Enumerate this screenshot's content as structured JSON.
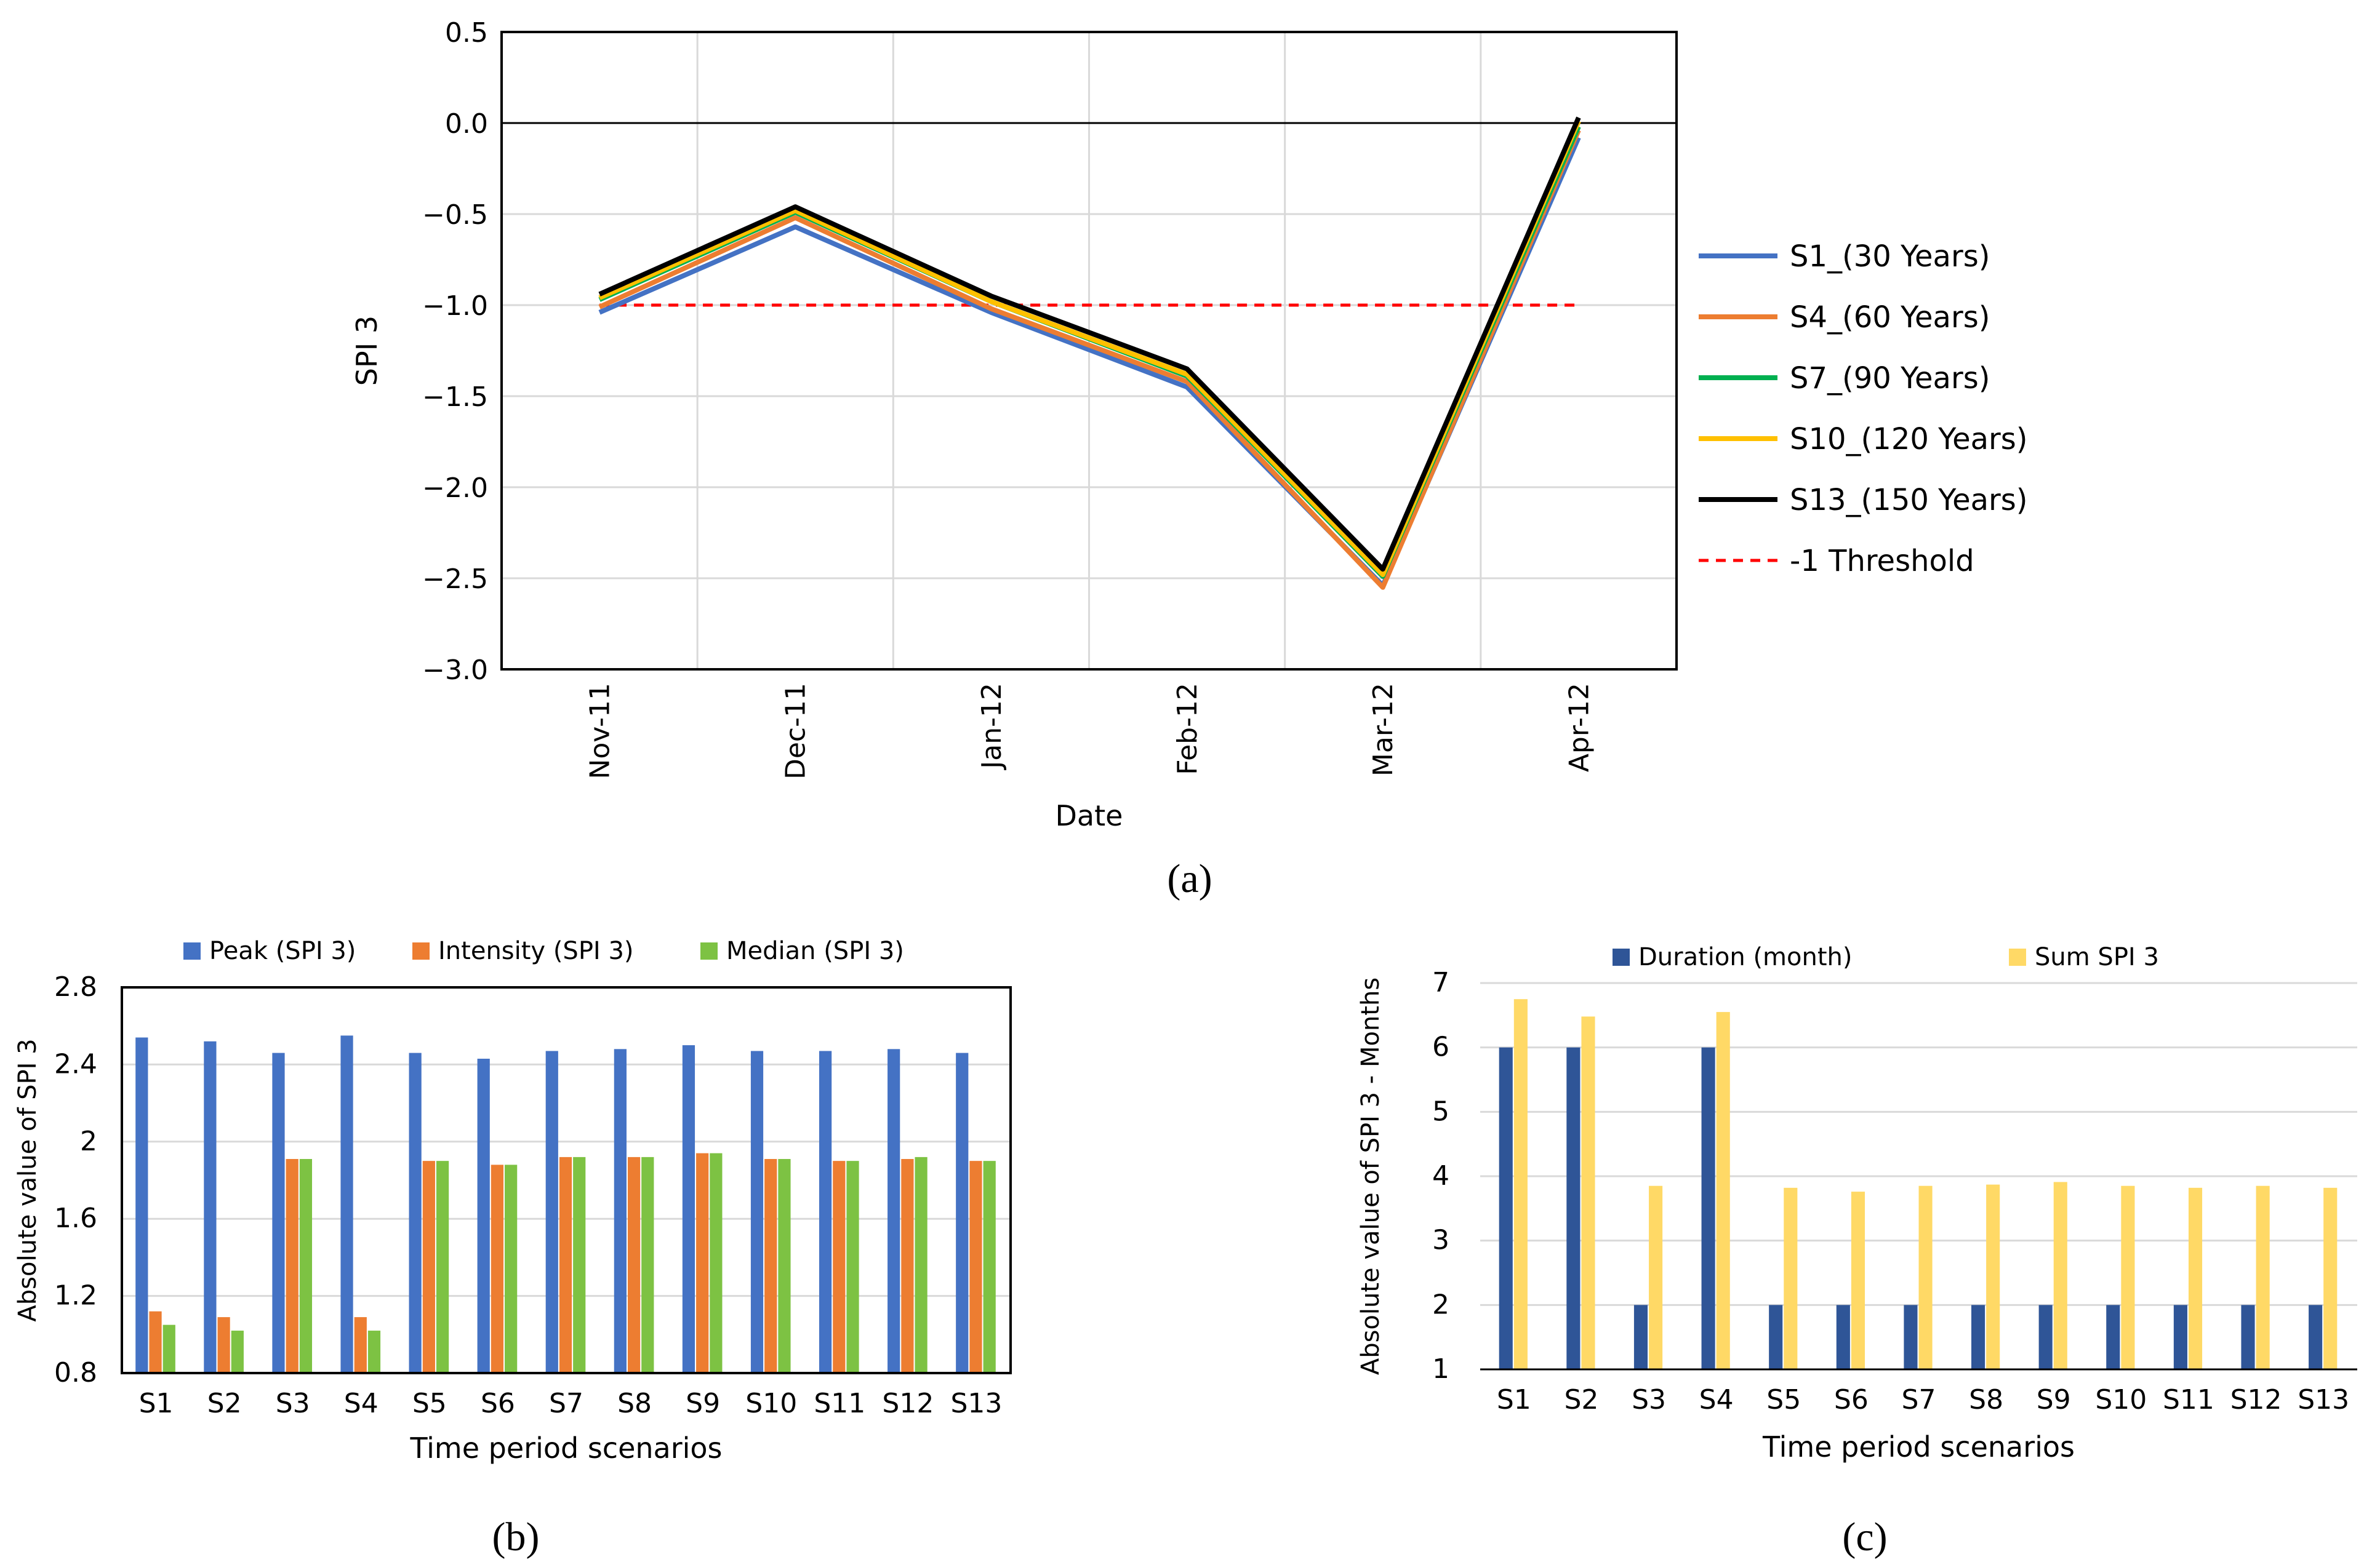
{
  "panel_labels": {
    "a": "(a)",
    "b": "(b)",
    "c": "(c)"
  },
  "chart_data": [
    {
      "id": "a",
      "type": "line",
      "xlabel": "Date",
      "ylabel": "SPI 3",
      "categories": [
        "Nov-11",
        "Dec-11",
        "Jan-12",
        "Feb-12",
        "Mar-12",
        "Apr-12"
      ],
      "ylim": [
        -3.0,
        0.5
      ],
      "yticks": [
        0.5,
        0.0,
        -0.5,
        -1.0,
        -1.5,
        -2.0,
        -2.5,
        -3.0
      ],
      "ytick_labels": [
        "0.5",
        "0.0",
        "−0.5",
        "−1.0",
        "−1.5",
        "−2.0",
        "−2.5",
        "−3.0"
      ],
      "grid": true,
      "legend_position": "right",
      "series": [
        {
          "name": "S1_(30 Years)",
          "color": "#4472C4",
          "values": [
            -1.04,
            -0.57,
            -1.04,
            -1.45,
            -2.54,
            -0.08
          ]
        },
        {
          "name": "S4_(60 Years)",
          "color": "#ED7D31",
          "values": [
            -1.01,
            -0.52,
            -1.02,
            -1.42,
            -2.55,
            -0.04
          ]
        },
        {
          "name": "S7_(90 Years)",
          "color": "#00B050",
          "values": [
            -0.97,
            -0.49,
            -0.98,
            -1.39,
            -2.49,
            -0.02
          ]
        },
        {
          "name": "S10_(120 Years)",
          "color": "#FFC000",
          "values": [
            -0.96,
            -0.48,
            -0.98,
            -1.38,
            -2.48,
            0.01
          ]
        },
        {
          "name": "S13_(150 Years)",
          "color": "#000000",
          "values": [
            -0.94,
            -0.46,
            -0.95,
            -1.35,
            -2.45,
            0.03
          ]
        }
      ],
      "threshold": {
        "name": "-1 Threshold",
        "value": -1.0,
        "color": "#FF0000",
        "style": "dashed"
      }
    },
    {
      "id": "b",
      "type": "bar",
      "xlabel": "Time period scenarios",
      "ylabel": "Absolute value of SPI 3",
      "categories": [
        "S1",
        "S2",
        "S3",
        "S4",
        "S5",
        "S6",
        "S7",
        "S8",
        "S9",
        "S10",
        "S11",
        "S12",
        "S13"
      ],
      "ylim": [
        0.8,
        2.8
      ],
      "yticks": [
        0.8,
        1.2,
        1.6,
        2.0,
        2.4,
        2.8
      ],
      "ytick_labels": [
        "0.8",
        "1.2",
        "1.6",
        "2",
        "2.4",
        "2.8"
      ],
      "grid": true,
      "legend_position": "top",
      "series": [
        {
          "name": "Peak (SPI 3)",
          "color": "#4472C4",
          "values": [
            2.54,
            2.52,
            2.46,
            2.55,
            2.46,
            2.43,
            2.47,
            2.48,
            2.5,
            2.47,
            2.47,
            2.48,
            2.46
          ]
        },
        {
          "name": "Intensity (SPI 3)",
          "color": "#ED7D31",
          "values": [
            1.12,
            1.09,
            1.91,
            1.09,
            1.9,
            1.88,
            1.92,
            1.92,
            1.94,
            1.91,
            1.9,
            1.91,
            1.9
          ]
        },
        {
          "name": "Median (SPI 3)",
          "color": "#7DC243",
          "values": [
            1.05,
            1.02,
            1.91,
            1.02,
            1.9,
            1.88,
            1.92,
            1.92,
            1.94,
            1.91,
            1.9,
            1.92,
            1.9
          ]
        }
      ]
    },
    {
      "id": "c",
      "type": "bar",
      "xlabel": "Time period scenarios",
      "ylabel": "Absolute value of SPI 3 - Months",
      "categories": [
        "S1",
        "S2",
        "S3",
        "S4",
        "S5",
        "S6",
        "S7",
        "S8",
        "S9",
        "S10",
        "S11",
        "S12",
        "S13"
      ],
      "ylim": [
        1,
        7
      ],
      "yticks": [
        1,
        2,
        3,
        4,
        5,
        6,
        7
      ],
      "ytick_labels": [
        "1",
        "2",
        "3",
        "4",
        "5",
        "6",
        "7"
      ],
      "grid": true,
      "legend_position": "top",
      "series": [
        {
          "name": "Duration (month)",
          "color": "#2F5597",
          "values": [
            6,
            6,
            2,
            6,
            2,
            2,
            2,
            2,
            2,
            2,
            2,
            2,
            2
          ]
        },
        {
          "name": "Sum SPI 3",
          "color": "#FFD966",
          "values": [
            6.75,
            6.48,
            3.85,
            6.55,
            3.82,
            3.76,
            3.85,
            3.87,
            3.91,
            3.85,
            3.82,
            3.85,
            3.82
          ]
        }
      ]
    }
  ]
}
